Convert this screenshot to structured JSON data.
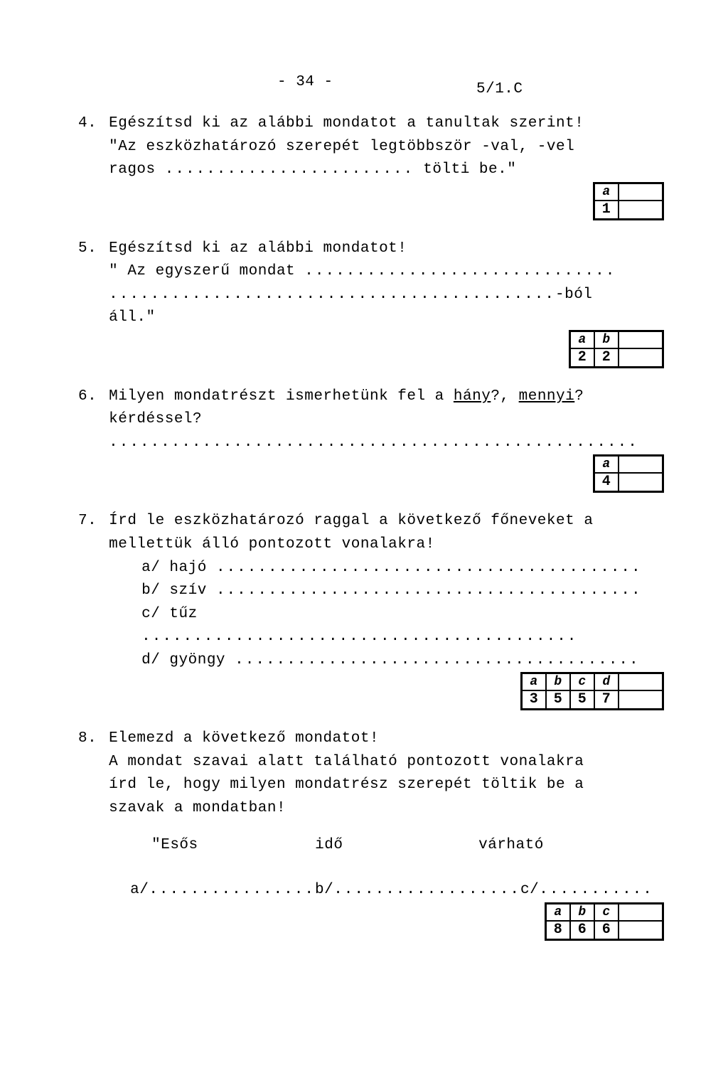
{
  "header": {
    "pagenum": "-  34  -",
    "code": "5/1.C"
  },
  "q4": {
    "num": "4.",
    "line1": "Egészítsd ki az alábbi mondatot a tanultak szerint!",
    "line2": "\"Az eszközhatározó szerepét legtöbbször -val, -vel",
    "line3_pre": "ragos ",
    "line3_dots": "........................",
    "line3_post": " tölti be.\"",
    "score": {
      "labels": [
        "a"
      ],
      "vals": [
        "1"
      ]
    }
  },
  "q5": {
    "num": "5.",
    "line1": "Egészítsd ki az alábbi mondatot!",
    "line2_pre": "\" Az egyszerű mondat ",
    "line2_dots": "..............................",
    "line3_dots": "...........................................",
    "line3_post": "-ból áll.\"",
    "score": {
      "labels": [
        "a",
        "b"
      ],
      "vals": [
        "2",
        "2"
      ]
    }
  },
  "q6": {
    "num": "6.",
    "line1_pre": "Milyen mondatrészt ismerhetünk fel a ",
    "u1": "hány",
    "mid": "?, ",
    "u2": "mennyi",
    "post": "?",
    "line2": "kérdéssel?",
    "dots": "...................................................",
    "score": {
      "labels": [
        "a"
      ],
      "vals": [
        "4"
      ]
    }
  },
  "q7": {
    "num": "7.",
    "line1": "Írd le eszközhatározó raggal a következő főneveket a",
    "line2": "mellettük álló pontozott vonalakra!",
    "items": [
      {
        "k": "a/ hajó ",
        "d": "........................................."
      },
      {
        "k": "b/ szív ",
        "d": "........................................."
      },
      {
        "k": "c/ tűz ",
        "d": ".........................................."
      },
      {
        "k": "d/ gyöngy ",
        "d": "......................................."
      }
    ],
    "score": {
      "labels": [
        "a",
        "b",
        "c",
        "d"
      ],
      "vals": [
        "3",
        "5",
        "5",
        "7"
      ]
    }
  },
  "q8": {
    "num": "8.",
    "line1": "Elemezd a következő mondatot!",
    "line2": "A mondat szavai alatt található pontozott vonalakra",
    "line3": "írd le, hogy milyen mondatrész szerepét töltik be a",
    "line4": "szavak a mondatban!",
    "w1": "\"Esős",
    "w2": "idő",
    "w3": "várható",
    "a1_pre": "a/ ",
    "a1_dots": "................",
    "a2_pre": " b/ ",
    "a2_dots": "..................",
    "a3_pre": " c/ ",
    "a3_dots": "...........",
    "score": {
      "labels": [
        "a",
        "b",
        "c"
      ],
      "vals": [
        "8",
        "6",
        "6"
      ]
    }
  }
}
